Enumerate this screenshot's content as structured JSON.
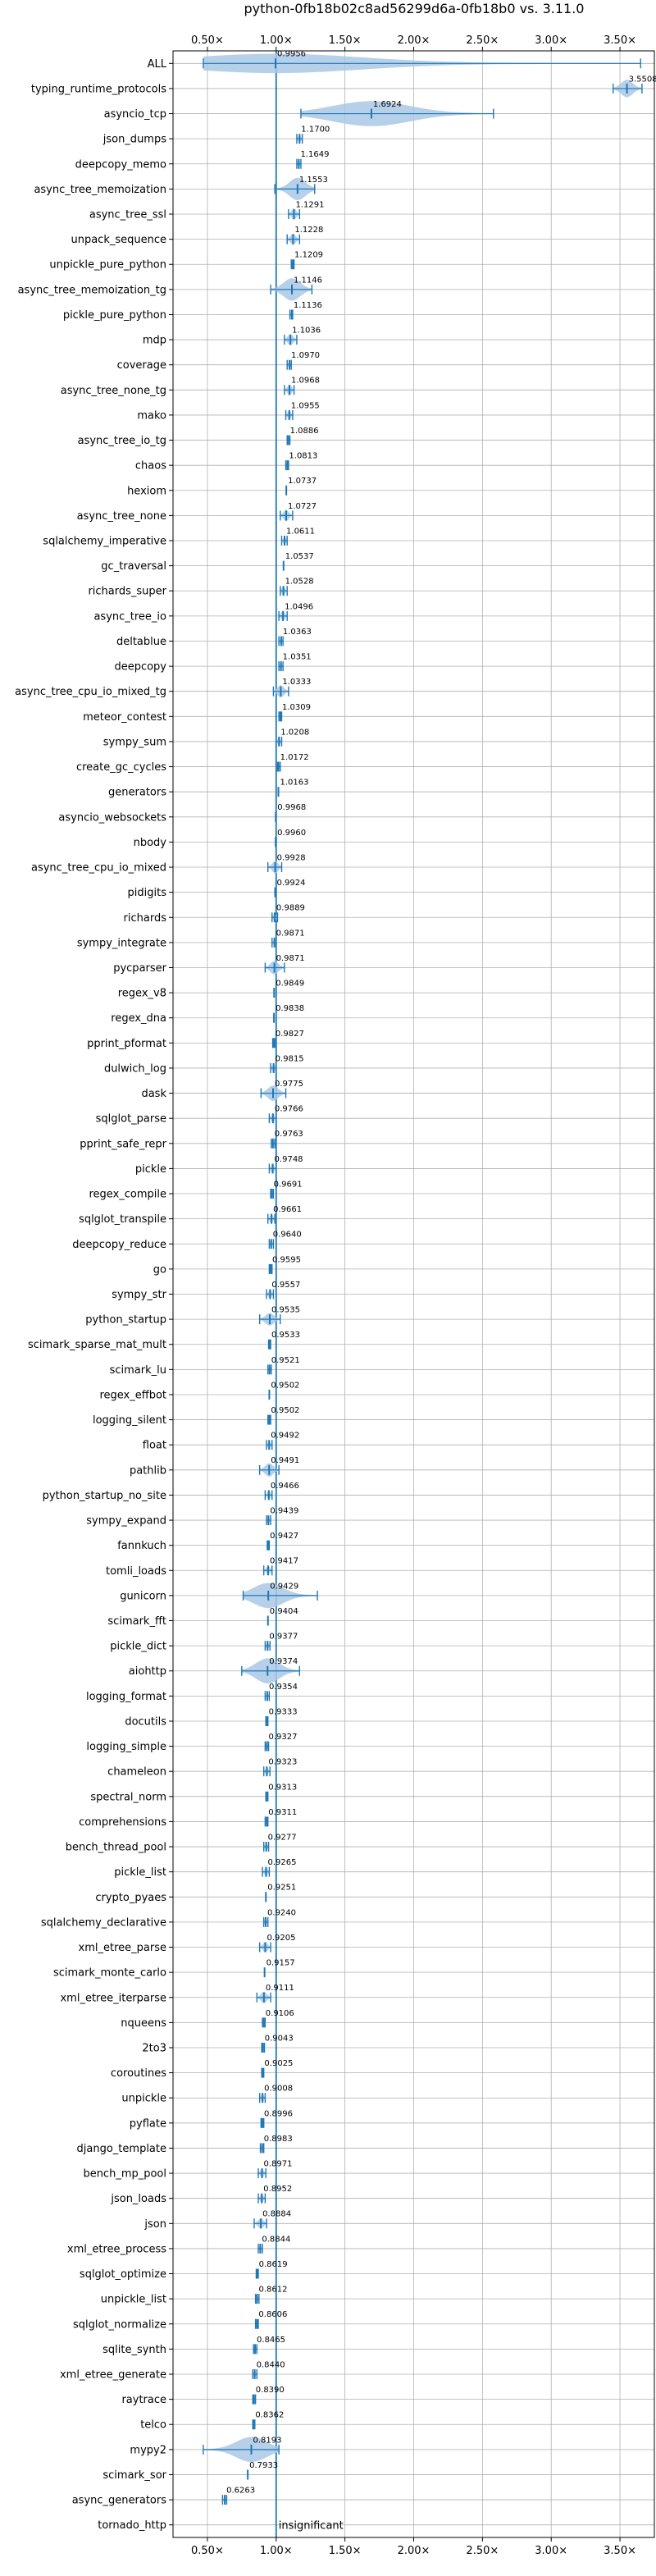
{
  "chart_data": {
    "type": "violin",
    "title": "python-0fb18b02c8ad56299d6a-0fb18b0 vs. 3.11.0",
    "xlim": [
      0.25,
      3.75
    ],
    "x_ticks": [
      0.5,
      1.0,
      1.5,
      2.0,
      2.5,
      3.0,
      3.5
    ],
    "x_tick_labels": [
      "0.50×",
      "1.00×",
      "1.50×",
      "2.00×",
      "2.50×",
      "3.00×",
      "3.50×"
    ],
    "grid": true,
    "reference_line": 1.0,
    "colors": {
      "violin": "#a9c8e6",
      "stat": "#1f77b4"
    },
    "benchmarks": [
      {
        "name": "ALL",
        "value": "0.9956",
        "mean": 0.9956,
        "min": 0.47,
        "max": 3.65,
        "spread": 0.12
      },
      {
        "name": "typing_runtime_protocols",
        "value": "3.5508",
        "mean": 3.5508,
        "min": 3.45,
        "max": 3.66,
        "spread": 0.1
      },
      {
        "name": "asyncio_tcp",
        "value": "1.6924",
        "mean": 1.6924,
        "min": 1.18,
        "max": 2.58,
        "spread": 0.7
      },
      {
        "name": "json_dumps",
        "value": "1.1700",
        "mean": 1.17,
        "min": 1.15,
        "max": 1.19,
        "spread": 0.02
      },
      {
        "name": "deepcopy_memo",
        "value": "1.1649",
        "mean": 1.1649,
        "min": 1.15,
        "max": 1.18,
        "spread": 0.02
      },
      {
        "name": "async_tree_memoization",
        "value": "1.1553",
        "mean": 1.1553,
        "min": 0.99,
        "max": 1.28,
        "spread": 0.15
      },
      {
        "name": "async_tree_ssl",
        "value": "1.1291",
        "mean": 1.1291,
        "min": 1.09,
        "max": 1.17,
        "spread": 0.04
      },
      {
        "name": "unpack_sequence",
        "value": "1.1228",
        "mean": 1.1228,
        "min": 1.08,
        "max": 1.17,
        "spread": 0.04
      },
      {
        "name": "unpickle_pure_python",
        "value": "1.1209",
        "mean": 1.1209,
        "min": 1.11,
        "max": 1.13,
        "spread": 0.01
      },
      {
        "name": "async_tree_memoization_tg",
        "value": "1.1146",
        "mean": 1.1146,
        "min": 0.96,
        "max": 1.26,
        "spread": 0.15
      },
      {
        "name": "pickle_pure_python",
        "value": "1.1136",
        "mean": 1.1136,
        "min": 1.1,
        "max": 1.12,
        "spread": 0.01
      },
      {
        "name": "mdp",
        "value": "1.1036",
        "mean": 1.1036,
        "min": 1.06,
        "max": 1.15,
        "spread": 0.04
      },
      {
        "name": "coverage",
        "value": "1.0970",
        "mean": 1.097,
        "min": 1.08,
        "max": 1.11,
        "spread": 0.015
      },
      {
        "name": "async_tree_none_tg",
        "value": "1.0968",
        "mean": 1.0968,
        "min": 1.06,
        "max": 1.13,
        "spread": 0.035
      },
      {
        "name": "mako",
        "value": "1.0955",
        "mean": 1.0955,
        "min": 1.07,
        "max": 1.12,
        "spread": 0.025
      },
      {
        "name": "async_tree_io_tg",
        "value": "1.0886",
        "mean": 1.0886,
        "min": 1.08,
        "max": 1.1,
        "spread": 0.01
      },
      {
        "name": "chaos",
        "value": "1.0813",
        "mean": 1.0813,
        "min": 1.07,
        "max": 1.09,
        "spread": 0.01
      },
      {
        "name": "hexiom",
        "value": "1.0737",
        "mean": 1.0737,
        "min": 1.07,
        "max": 1.08,
        "spread": 0.006
      },
      {
        "name": "async_tree_none",
        "value": "1.0727",
        "mean": 1.0727,
        "min": 1.03,
        "max": 1.12,
        "spread": 0.04
      },
      {
        "name": "sqlalchemy_imperative",
        "value": "1.0611",
        "mean": 1.0611,
        "min": 1.04,
        "max": 1.08,
        "spread": 0.02
      },
      {
        "name": "gc_traversal",
        "value": "1.0537",
        "mean": 1.0537,
        "min": 1.05,
        "max": 1.06,
        "spread": 0.005
      },
      {
        "name": "richards_super",
        "value": "1.0528",
        "mean": 1.0528,
        "min": 1.03,
        "max": 1.08,
        "spread": 0.02
      },
      {
        "name": "async_tree_io",
        "value": "1.0496",
        "mean": 1.0496,
        "min": 1.02,
        "max": 1.08,
        "spread": 0.03
      },
      {
        "name": "deltablue",
        "value": "1.0363",
        "mean": 1.0363,
        "min": 1.02,
        "max": 1.05,
        "spread": 0.015
      },
      {
        "name": "deepcopy",
        "value": "1.0351",
        "mean": 1.0351,
        "min": 1.02,
        "max": 1.05,
        "spread": 0.015
      },
      {
        "name": "async_tree_cpu_io_mixed_tg",
        "value": "1.0333",
        "mean": 1.0333,
        "min": 0.98,
        "max": 1.09,
        "spread": 0.05
      },
      {
        "name": "meteor_contest",
        "value": "1.0309",
        "mean": 1.0309,
        "min": 1.02,
        "max": 1.04,
        "spread": 0.01
      },
      {
        "name": "sympy_sum",
        "value": "1.0208",
        "mean": 1.0208,
        "min": 1.0,
        "max": 1.04,
        "spread": 0.02
      },
      {
        "name": "create_gc_cycles",
        "value": "1.0172",
        "mean": 1.0172,
        "min": 1.01,
        "max": 1.03,
        "spread": 0.008
      },
      {
        "name": "generators",
        "value": "1.0163",
        "mean": 1.0163,
        "min": 1.01,
        "max": 1.02,
        "spread": 0.005
      },
      {
        "name": "asyncio_websockets",
        "value": "0.9968",
        "mean": 0.9968,
        "min": 0.993,
        "max": 1.0,
        "spread": 0.003
      },
      {
        "name": "nbody",
        "value": "0.9960",
        "mean": 0.996,
        "min": 0.99,
        "max": 1.0,
        "spread": 0.004
      },
      {
        "name": "async_tree_cpu_io_mixed",
        "value": "0.9928",
        "mean": 0.9928,
        "min": 0.94,
        "max": 1.04,
        "spread": 0.05
      },
      {
        "name": "pidigits",
        "value": "0.9924",
        "mean": 0.9924,
        "min": 0.99,
        "max": 0.995,
        "spread": 0.003
      },
      {
        "name": "richards",
        "value": "0.9889",
        "mean": 0.9889,
        "min": 0.97,
        "max": 1.01,
        "spread": 0.02
      },
      {
        "name": "sympy_integrate",
        "value": "0.9871",
        "mean": 0.9871,
        "min": 0.97,
        "max": 1.0,
        "spread": 0.015
      },
      {
        "name": "pycparser",
        "value": "0.9871",
        "mean": 0.9871,
        "min": 0.92,
        "max": 1.06,
        "spread": 0.06
      },
      {
        "name": "regex_v8",
        "value": "0.9849",
        "mean": 0.9849,
        "min": 0.98,
        "max": 0.99,
        "spread": 0.005
      },
      {
        "name": "regex_dna",
        "value": "0.9838",
        "mean": 0.9838,
        "min": 0.98,
        "max": 0.99,
        "spread": 0.005
      },
      {
        "name": "pprint_pformat",
        "value": "0.9827",
        "mean": 0.9827,
        "min": 0.975,
        "max": 0.99,
        "spread": 0.007
      },
      {
        "name": "dulwich_log",
        "value": "0.9815",
        "mean": 0.9815,
        "min": 0.96,
        "max": 1.0,
        "spread": 0.02
      },
      {
        "name": "dask",
        "value": "0.9775",
        "mean": 0.9775,
        "min": 0.89,
        "max": 1.07,
        "spread": 0.08
      },
      {
        "name": "sqlglot_parse",
        "value": "0.9766",
        "mean": 0.9766,
        "min": 0.95,
        "max": 1.0,
        "spread": 0.025
      },
      {
        "name": "pprint_safe_repr",
        "value": "0.9763",
        "mean": 0.9763,
        "min": 0.965,
        "max": 0.99,
        "spread": 0.01
      },
      {
        "name": "pickle",
        "value": "0.9748",
        "mean": 0.9748,
        "min": 0.95,
        "max": 1.0,
        "spread": 0.02
      },
      {
        "name": "regex_compile",
        "value": "0.9691",
        "mean": 0.9691,
        "min": 0.96,
        "max": 0.98,
        "spread": 0.008
      },
      {
        "name": "sqlglot_transpile",
        "value": "0.9661",
        "mean": 0.9661,
        "min": 0.94,
        "max": 0.99,
        "spread": 0.02
      },
      {
        "name": "deepcopy_reduce",
        "value": "0.9640",
        "mean": 0.964,
        "min": 0.95,
        "max": 0.98,
        "spread": 0.012
      },
      {
        "name": "go",
        "value": "0.9595",
        "mean": 0.9595,
        "min": 0.95,
        "max": 0.97,
        "spread": 0.008
      },
      {
        "name": "sympy_str",
        "value": "0.9557",
        "mean": 0.9557,
        "min": 0.93,
        "max": 0.98,
        "spread": 0.02
      },
      {
        "name": "python_startup",
        "value": "0.9535",
        "mean": 0.9535,
        "min": 0.88,
        "max": 1.03,
        "spread": 0.05
      },
      {
        "name": "scimark_sparse_mat_mult",
        "value": "0.9533",
        "mean": 0.9533,
        "min": 0.945,
        "max": 0.96,
        "spread": 0.006
      },
      {
        "name": "scimark_lu",
        "value": "0.9521",
        "mean": 0.9521,
        "min": 0.94,
        "max": 0.965,
        "spread": 0.01
      },
      {
        "name": "regex_effbot",
        "value": "0.9502",
        "mean": 0.9502,
        "min": 0.945,
        "max": 0.955,
        "spread": 0.004
      },
      {
        "name": "logging_silent",
        "value": "0.9502",
        "mean": 0.9502,
        "min": 0.94,
        "max": 0.96,
        "spread": 0.008
      },
      {
        "name": "float",
        "value": "0.9492",
        "mean": 0.9492,
        "min": 0.93,
        "max": 0.97,
        "spread": 0.015
      },
      {
        "name": "pathlib",
        "value": "0.9491",
        "mean": 0.9491,
        "min": 0.88,
        "max": 1.02,
        "spread": 0.06
      },
      {
        "name": "python_startup_no_site",
        "value": "0.9466",
        "mean": 0.9466,
        "min": 0.92,
        "max": 0.97,
        "spread": 0.02
      },
      {
        "name": "sympy_expand",
        "value": "0.9439",
        "mean": 0.9439,
        "min": 0.93,
        "max": 0.96,
        "spread": 0.012
      },
      {
        "name": "fannkuch",
        "value": "0.9427",
        "mean": 0.9427,
        "min": 0.935,
        "max": 0.95,
        "spread": 0.005
      },
      {
        "name": "tomli_loads",
        "value": "0.9417",
        "mean": 0.9417,
        "min": 0.91,
        "max": 0.97,
        "spread": 0.02
      },
      {
        "name": "gunicorn",
        "value": "0.9429",
        "mean": 0.9429,
        "min": 0.76,
        "max": 1.3,
        "spread": 0.22
      },
      {
        "name": "scimark_fft",
        "value": "0.9404",
        "mean": 0.9404,
        "min": 0.935,
        "max": 0.945,
        "spread": 0.004
      },
      {
        "name": "pickle_dict",
        "value": "0.9377",
        "mean": 0.9377,
        "min": 0.92,
        "max": 0.955,
        "spread": 0.015
      },
      {
        "name": "aiohttp",
        "value": "0.9374",
        "mean": 0.9374,
        "min": 0.75,
        "max": 1.17,
        "spread": 0.2
      },
      {
        "name": "logging_format",
        "value": "0.9354",
        "mean": 0.9354,
        "min": 0.92,
        "max": 0.95,
        "spread": 0.012
      },
      {
        "name": "docutils",
        "value": "0.9333",
        "mean": 0.9333,
        "min": 0.925,
        "max": 0.94,
        "spread": 0.005
      },
      {
        "name": "logging_simple",
        "value": "0.9327",
        "mean": 0.9327,
        "min": 0.92,
        "max": 0.945,
        "spread": 0.01
      },
      {
        "name": "chameleon",
        "value": "0.9323",
        "mean": 0.9323,
        "min": 0.91,
        "max": 0.955,
        "spread": 0.015
      },
      {
        "name": "spectral_norm",
        "value": "0.9313",
        "mean": 0.9313,
        "min": 0.925,
        "max": 0.94,
        "spread": 0.005
      },
      {
        "name": "comprehensions",
        "value": "0.9311",
        "mean": 0.9311,
        "min": 0.92,
        "max": 0.94,
        "spread": 0.008
      },
      {
        "name": "bench_thread_pool",
        "value": "0.9277",
        "mean": 0.9277,
        "min": 0.91,
        "max": 0.945,
        "spread": 0.012
      },
      {
        "name": "pickle_list",
        "value": "0.9265",
        "mean": 0.9265,
        "min": 0.9,
        "max": 0.95,
        "spread": 0.02
      },
      {
        "name": "crypto_pyaes",
        "value": "0.9251",
        "mean": 0.9251,
        "min": 0.92,
        "max": 0.93,
        "spread": 0.004
      },
      {
        "name": "sqlalchemy_declarative",
        "value": "0.9240",
        "mean": 0.924,
        "min": 0.91,
        "max": 0.94,
        "spread": 0.01
      },
      {
        "name": "xml_etree_parse",
        "value": "0.9205",
        "mean": 0.9205,
        "min": 0.88,
        "max": 0.96,
        "spread": 0.03
      },
      {
        "name": "scimark_monte_carlo",
        "value": "0.9157",
        "mean": 0.9157,
        "min": 0.91,
        "max": 0.92,
        "spread": 0.004
      },
      {
        "name": "xml_etree_iterparse",
        "value": "0.9111",
        "mean": 0.9111,
        "min": 0.86,
        "max": 0.96,
        "spread": 0.04
      },
      {
        "name": "nqueens",
        "value": "0.9106",
        "mean": 0.9106,
        "min": 0.9,
        "max": 0.92,
        "spread": 0.006
      },
      {
        "name": "2to3",
        "value": "0.9043",
        "mean": 0.9043,
        "min": 0.895,
        "max": 0.915,
        "spread": 0.006
      },
      {
        "name": "coroutines",
        "value": "0.9025",
        "mean": 0.9025,
        "min": 0.895,
        "max": 0.91,
        "spread": 0.005
      },
      {
        "name": "unpickle",
        "value": "0.9008",
        "mean": 0.9008,
        "min": 0.88,
        "max": 0.92,
        "spread": 0.015
      },
      {
        "name": "pyflate",
        "value": "0.8996",
        "mean": 0.8996,
        "min": 0.89,
        "max": 0.91,
        "spread": 0.006
      },
      {
        "name": "django_template",
        "value": "0.8983",
        "mean": 0.8983,
        "min": 0.885,
        "max": 0.91,
        "spread": 0.01
      },
      {
        "name": "bench_mp_pool",
        "value": "0.8971",
        "mean": 0.8971,
        "min": 0.87,
        "max": 0.925,
        "spread": 0.02
      },
      {
        "name": "json_loads",
        "value": "0.8952",
        "mean": 0.8952,
        "min": 0.87,
        "max": 0.92,
        "spread": 0.02
      },
      {
        "name": "json",
        "value": "0.8884",
        "mean": 0.8884,
        "min": 0.84,
        "max": 0.93,
        "spread": 0.03
      },
      {
        "name": "xml_etree_process",
        "value": "0.8844",
        "mean": 0.8844,
        "min": 0.87,
        "max": 0.9,
        "spread": 0.01
      },
      {
        "name": "sqlglot_optimize",
        "value": "0.8619",
        "mean": 0.8619,
        "min": 0.855,
        "max": 0.87,
        "spread": 0.005
      },
      {
        "name": "unpickle_list",
        "value": "0.8612",
        "mean": 0.8612,
        "min": 0.85,
        "max": 0.875,
        "spread": 0.008
      },
      {
        "name": "sqlglot_normalize",
        "value": "0.8606",
        "mean": 0.8606,
        "min": 0.85,
        "max": 0.87,
        "spread": 0.007
      },
      {
        "name": "sqlite_synth",
        "value": "0.8465",
        "mean": 0.8465,
        "min": 0.835,
        "max": 0.86,
        "spread": 0.008
      },
      {
        "name": "xml_etree_generate",
        "value": "0.8440",
        "mean": 0.844,
        "min": 0.83,
        "max": 0.86,
        "spread": 0.01
      },
      {
        "name": "raytrace",
        "value": "0.8390",
        "mean": 0.839,
        "min": 0.83,
        "max": 0.85,
        "spread": 0.006
      },
      {
        "name": "telco",
        "value": "0.8362",
        "mean": 0.8362,
        "min": 0.83,
        "max": 0.845,
        "spread": 0.005
      },
      {
        "name": "mypy2",
        "value": "0.8193",
        "mean": 0.8193,
        "min": 0.47,
        "max": 1.02,
        "spread": 0.25
      },
      {
        "name": "scimark_sor",
        "value": "0.7933",
        "mean": 0.7933,
        "min": 0.79,
        "max": 0.8,
        "spread": 0.004
      },
      {
        "name": "async_generators",
        "value": "0.6263",
        "mean": 0.6263,
        "min": 0.61,
        "max": 0.64,
        "spread": 0.006
      },
      {
        "name": "tornado_http",
        "value": "insignificant",
        "mean": null,
        "min": null,
        "max": null,
        "spread": null
      }
    ]
  }
}
